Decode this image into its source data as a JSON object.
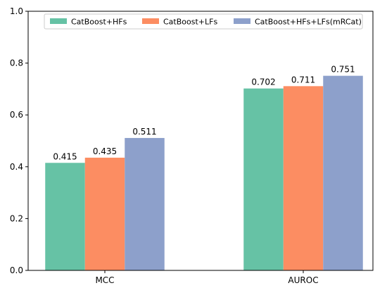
{
  "chart_data": {
    "type": "bar",
    "title": "",
    "xlabel": "",
    "ylabel": "",
    "categories": [
      "MCC",
      "AUROC"
    ],
    "series": [
      {
        "name": "CatBoost+HFs",
        "values": [
          0.415,
          0.702
        ],
        "color": "#66c2a5"
      },
      {
        "name": "CatBoost+LFs",
        "values": [
          0.435,
          0.711
        ],
        "color": "#fc8d62"
      },
      {
        "name": "CatBoost+HFs+LFs(mRCat)",
        "values": [
          0.511,
          0.751
        ],
        "color": "#8da0cb"
      }
    ],
    "ylim": [
      0.0,
      1.0
    ],
    "yticks": [
      "0.0",
      "0.2",
      "0.4",
      "0.6",
      "0.8",
      "1.0"
    ],
    "grid": false,
    "legend_position": "top"
  }
}
